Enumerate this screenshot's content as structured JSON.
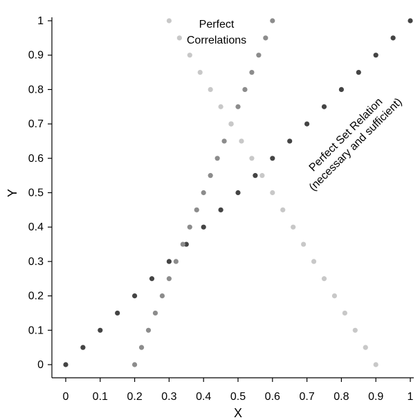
{
  "chart_data": {
    "type": "scatter",
    "title": "",
    "xlabel": "X",
    "ylabel": "Y",
    "xlim": [
      0,
      1
    ],
    "ylim": [
      0,
      1
    ],
    "x_ticks": [
      "0",
      "0.1",
      "0.2",
      "0.3",
      "0.4",
      "0.5",
      "0.6",
      "0.7",
      "0.8",
      "0.9",
      "1"
    ],
    "y_ticks": [
      "0",
      "0.1",
      "0.2",
      "0.3",
      "0.4",
      "0.5",
      "0.6",
      "0.7",
      "0.8",
      "0.9",
      "1"
    ],
    "grid": false,
    "legend": "none",
    "annotations": [
      {
        "lines": [
          "Perfect",
          "Correlations"
        ]
      },
      {
        "lines": [
          "Perfect Set Relation",
          "(necessary and sufficient)"
        ]
      }
    ],
    "series": [
      {
        "color": "#444444",
        "points": [
          [
            0,
            0
          ],
          [
            0.05,
            0.05
          ],
          [
            0.1,
            0.1
          ],
          [
            0.15,
            0.15
          ],
          [
            0.2,
            0.2
          ],
          [
            0.25,
            0.25
          ],
          [
            0.3,
            0.3
          ],
          [
            0.35,
            0.35
          ],
          [
            0.4,
            0.4
          ],
          [
            0.45,
            0.45
          ],
          [
            0.5,
            0.5
          ],
          [
            0.55,
            0.55
          ],
          [
            0.6,
            0.6
          ],
          [
            0.65,
            0.65
          ],
          [
            0.7,
            0.7
          ],
          [
            0.75,
            0.75
          ],
          [
            0.8,
            0.8
          ],
          [
            0.85,
            0.85
          ],
          [
            0.9,
            0.9
          ],
          [
            0.95,
            0.95
          ],
          [
            1,
            1
          ]
        ]
      },
      {
        "color": "#8c8c8c",
        "points": [
          [
            0.2,
            0
          ],
          [
            0.22,
            0.05
          ],
          [
            0.24,
            0.1
          ],
          [
            0.26,
            0.15
          ],
          [
            0.28,
            0.2
          ],
          [
            0.3,
            0.25
          ],
          [
            0.32,
            0.3
          ],
          [
            0.34,
            0.35
          ],
          [
            0.36,
            0.4
          ],
          [
            0.38,
            0.45
          ],
          [
            0.4,
            0.5
          ],
          [
            0.42,
            0.55
          ],
          [
            0.44,
            0.6
          ],
          [
            0.46,
            0.65
          ],
          [
            0.48,
            0.7
          ],
          [
            0.5,
            0.75
          ],
          [
            0.52,
            0.8
          ],
          [
            0.54,
            0.85
          ],
          [
            0.56,
            0.9
          ],
          [
            0.58,
            0.95
          ],
          [
            0.6,
            1
          ]
        ]
      },
      {
        "color": "#c8c8c8",
        "points": [
          [
            0.3,
            1
          ],
          [
            0.33,
            0.95
          ],
          [
            0.36,
            0.9
          ],
          [
            0.39,
            0.85
          ],
          [
            0.42,
            0.8
          ],
          [
            0.45,
            0.75
          ],
          [
            0.48,
            0.7
          ],
          [
            0.51,
            0.65
          ],
          [
            0.54,
            0.6
          ],
          [
            0.57,
            0.55
          ],
          [
            0.6,
            0.5
          ],
          [
            0.63,
            0.45
          ],
          [
            0.66,
            0.4
          ],
          [
            0.69,
            0.35
          ],
          [
            0.72,
            0.3
          ],
          [
            0.75,
            0.25
          ],
          [
            0.78,
            0.2
          ],
          [
            0.81,
            0.15
          ],
          [
            0.84,
            0.1
          ],
          [
            0.87,
            0.05
          ],
          [
            0.9,
            0
          ]
        ]
      }
    ]
  }
}
